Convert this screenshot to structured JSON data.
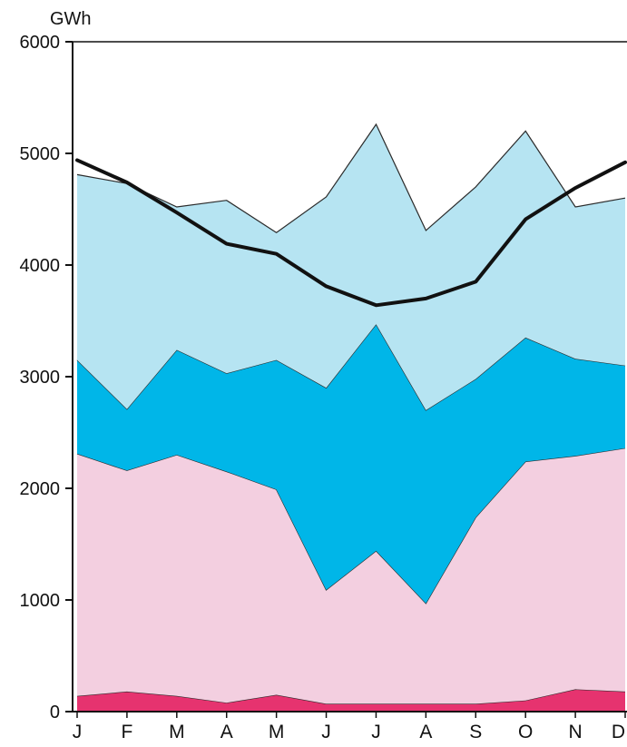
{
  "chart_data": {
    "type": "area",
    "title": "",
    "ylabel": "GWh",
    "xlabel": "",
    "ylim": [
      0,
      6000
    ],
    "yticks": [
      0,
      1000,
      2000,
      3000,
      4000,
      5000,
      6000
    ],
    "ytick_labels": [
      "0",
      "1000",
      "2000",
      "3000",
      "4000",
      "5000",
      "6000"
    ],
    "categories": [
      "J",
      "F",
      "M",
      "A",
      "M",
      "J",
      "J",
      "A",
      "S",
      "O",
      "N",
      "D"
    ],
    "stacked": true,
    "grid": false,
    "legend": "none",
    "series": [
      {
        "color": "#e6336f",
        "values": [
          140,
          180,
          140,
          80,
          150,
          70,
          70,
          70,
          70,
          100,
          200,
          180
        ]
      },
      {
        "color": "#f3cfe0",
        "values": [
          2170,
          1980,
          2160,
          2070,
          1840,
          1020,
          1370,
          900,
          1670,
          2140,
          2090,
          2180
        ]
      },
      {
        "color": "#00b6e8",
        "values": [
          840,
          550,
          940,
          880,
          1160,
          1810,
          2030,
          1730,
          1240,
          1110,
          870,
          740
        ]
      },
      {
        "color": "#b6e4f2",
        "values": [
          1660,
          2020,
          1280,
          1550,
          1140,
          1710,
          1790,
          1610,
          1720,
          1850,
          1360,
          1500
        ]
      }
    ],
    "line_series": {
      "color": "#111111",
      "values": [
        4940,
        4740,
        4470,
        4190,
        4100,
        3810,
        3640,
        3700,
        3850,
        4410,
        4690,
        4920
      ]
    }
  }
}
